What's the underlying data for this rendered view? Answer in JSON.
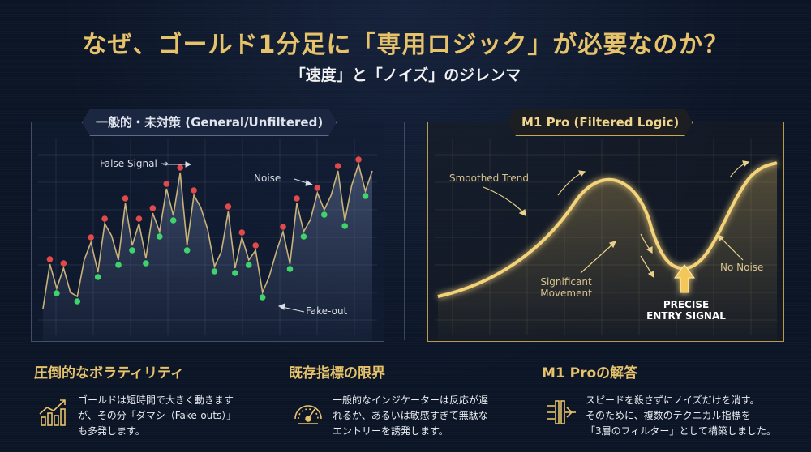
{
  "header": {
    "title": "なぜ、ゴールド1分足に「専用ロジック」が必要なのか？",
    "subtitle": "「速度」と「ノイズ」のジレンマ"
  },
  "left_panel": {
    "tag": "一般的・未対策 (General/Unfiltered)",
    "annotations": {
      "false_signal": "False Signal →",
      "noise": "Noise",
      "fake_out": "Fake-out"
    },
    "price_series": [
      20,
      75,
      45,
      70,
      40,
      35,
      80,
      102,
      65,
      125,
      110,
      80,
      150,
      98,
      125,
      82,
      138,
      115,
      168,
      135,
      188,
      98,
      160,
      145,
      118,
      72,
      90,
      140,
      70,
      108,
      80,
      92,
      40,
      60,
      90,
      115,
      75,
      150,
      115,
      130,
      163,
      142,
      160,
      190,
      128,
      172,
      198,
      165,
      190
    ]
  },
  "right_panel": {
    "tag": "M1 Pro (Filtered Logic)",
    "annotations": {
      "smoothed_trend": "Smoothed Trend",
      "significant_movement": "Significant\nMovement",
      "precise_entry": "PRECISE\nENTRY SIGNAL",
      "no_noise": "No Noise"
    }
  },
  "columns": [
    {
      "heading": "圧倒的なボラティリティ",
      "icon": "rising-chart-icon",
      "lines": [
        "ゴールドは短時間で大きく動きます",
        "が、その分「ダマシ（Fake-outs）」",
        "も多発します。"
      ]
    },
    {
      "heading": "既存指標の限界",
      "icon": "speedometer-icon",
      "lines": [
        "一般的なインジケーターは反応が遅",
        "れるか、あるいは敏感すぎて無駄な",
        "エントリーを誘発します。"
      ]
    },
    {
      "heading": "M1 Proの解答",
      "icon": "filter-icon",
      "lines": [
        "スピードを殺さずにノイズだけを消す。",
        "そのために、複数のテクニカル指標を",
        "「3層のフィルター」として構築しました。"
      ]
    }
  ],
  "colors": {
    "gold": "#e6c26a",
    "signal_red": "#e24a4a",
    "signal_green": "#3fd36b",
    "background": "#0c1526"
  }
}
